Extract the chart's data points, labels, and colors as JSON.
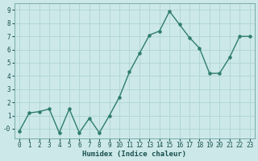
{
  "x": [
    0,
    1,
    2,
    3,
    4,
    5,
    6,
    7,
    8,
    9,
    10,
    11,
    12,
    13,
    14,
    15,
    16,
    17,
    18,
    19,
    20,
    21,
    22,
    23
  ],
  "y": [
    -0.2,
    1.2,
    1.3,
    1.5,
    -0.3,
    1.5,
    -0.3,
    0.8,
    -0.3,
    1.0,
    2.4,
    4.3,
    5.7,
    7.1,
    7.4,
    8.9,
    7.9,
    6.9,
    6.1,
    4.2,
    4.2,
    5.4,
    7.0,
    7.0
  ],
  "xlabel": "Humidex (Indice chaleur)",
  "line_color": "#2e7d6e",
  "bg_color": "#cce8e8",
  "grid_color": "#b0d4d4",
  "ylim": [
    -0.75,
    9.5
  ],
  "xlim": [
    -0.5,
    23.5
  ],
  "yticks": [
    0,
    1,
    2,
    3,
    4,
    5,
    6,
    7,
    8,
    9
  ],
  "ytick_labels": [
    "-0",
    "1",
    "2",
    "3",
    "4",
    "5",
    "6",
    "7",
    "8",
    "9"
  ],
  "xtick_labels": [
    "0",
    "1",
    "2",
    "3",
    "4",
    "5",
    "6",
    "7",
    "8",
    "9",
    "10",
    "11",
    "12",
    "13",
    "14",
    "15",
    "16",
    "17",
    "18",
    "19",
    "20",
    "21",
    "22",
    "23"
  ],
  "marker_size": 2.2,
  "line_width": 1.0,
  "xlabel_fontsize": 6.5,
  "tick_fontsize": 5.5
}
